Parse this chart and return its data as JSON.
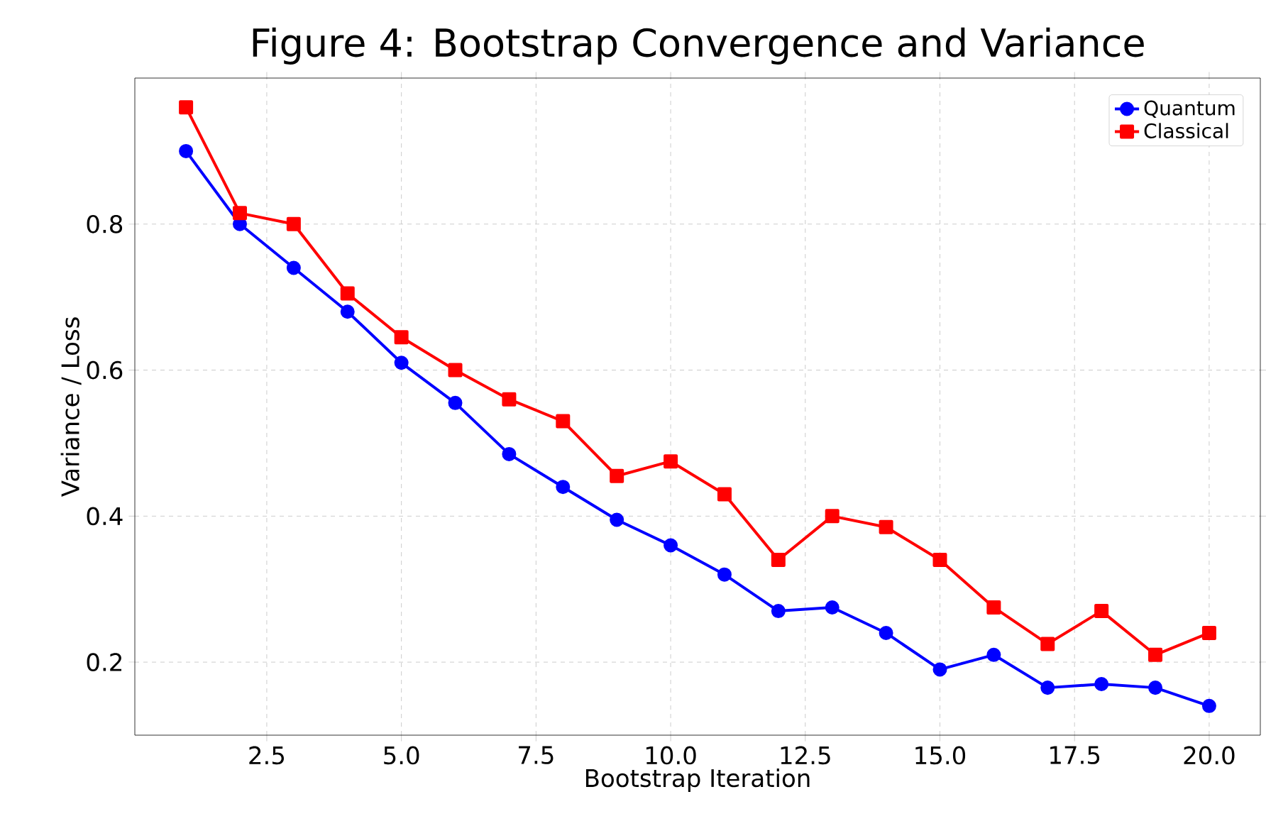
{
  "chart_data": {
    "type": "line",
    "title": "Figure 4: Bootstrap Convergence and Variance",
    "xlabel": "Bootstrap Iteration",
    "ylabel": "Variance / Loss",
    "x": [
      1,
      2,
      3,
      4,
      5,
      6,
      7,
      8,
      9,
      10,
      11,
      12,
      13,
      14,
      15,
      16,
      17,
      18,
      19,
      20
    ],
    "series": [
      {
        "name": "Quantum",
        "color": "#0000ff",
        "marker": "circle",
        "values": [
          0.9,
          0.8,
          0.74,
          0.68,
          0.61,
          0.555,
          0.485,
          0.44,
          0.395,
          0.36,
          0.32,
          0.27,
          0.275,
          0.24,
          0.19,
          0.21,
          0.165,
          0.17,
          0.165,
          0.14
        ]
      },
      {
        "name": "Classical",
        "color": "#ff0000",
        "marker": "square",
        "values": [
          0.96,
          0.815,
          0.8,
          0.705,
          0.645,
          0.6,
          0.56,
          0.53,
          0.455,
          0.475,
          0.43,
          0.34,
          0.4,
          0.385,
          0.34,
          0.275,
          0.225,
          0.27,
          0.21,
          0.24
        ]
      }
    ],
    "xlim": [
      0.05,
      20.95
    ],
    "ylim": [
      0.1,
      1.0
    ],
    "xticks": [
      2.5,
      {
        "value": 5,
        "label": "5.0"
      },
      7.5,
      {
        "value": 10,
        "label": "10.0"
      },
      12.5,
      {
        "value": 15,
        "label": "15.0"
      },
      17.5,
      {
        "value": 20,
        "label": "20.0"
      }
    ],
    "yticks": [
      0.2,
      0.4,
      0.6,
      0.8
    ],
    "grid": true,
    "legend": "top right",
    "line_style": "solid"
  }
}
